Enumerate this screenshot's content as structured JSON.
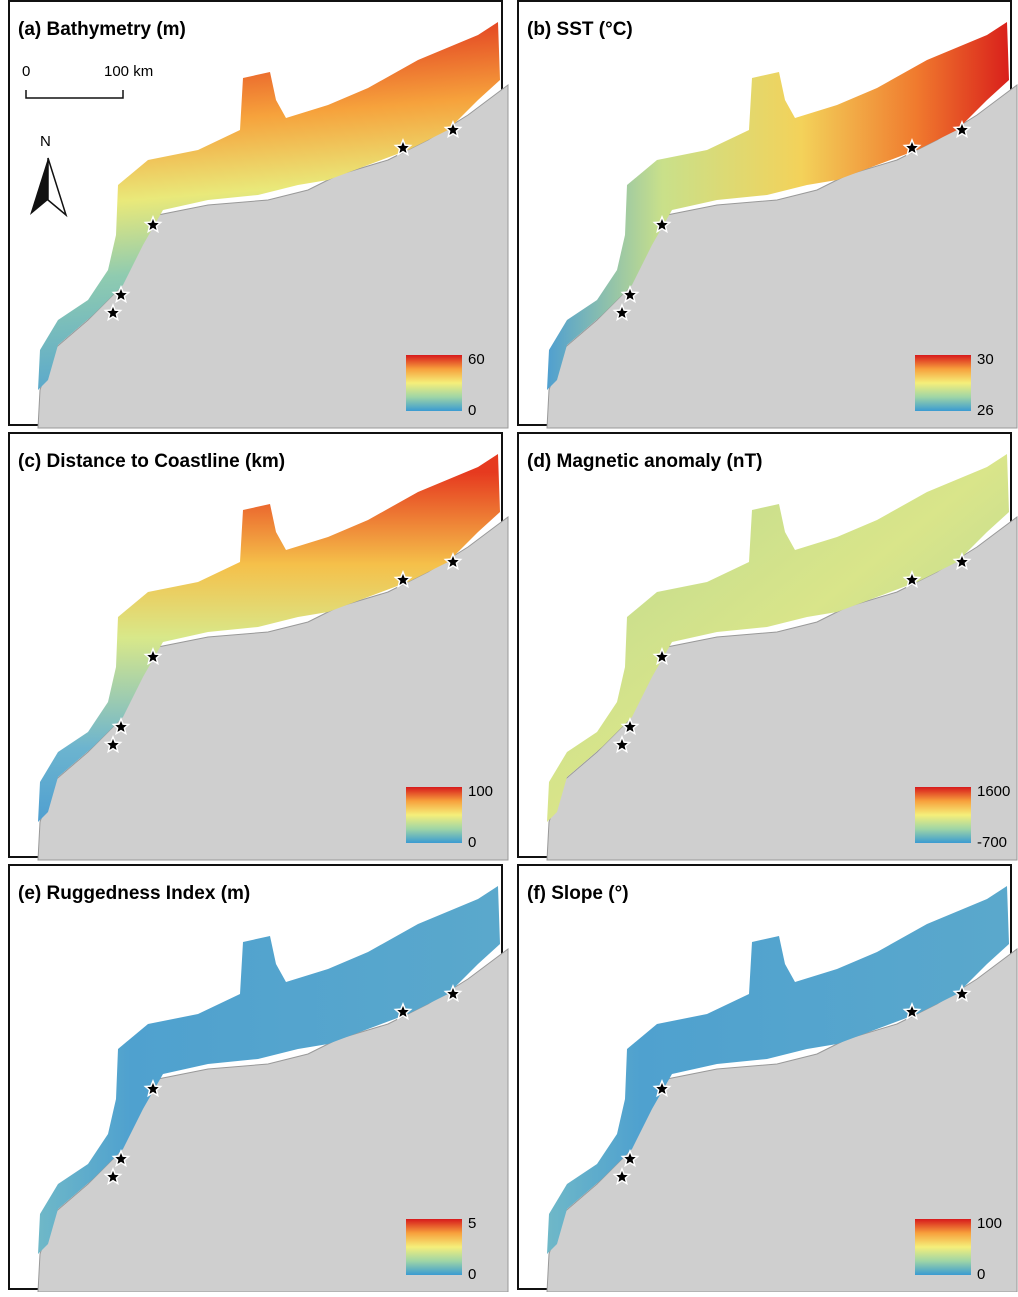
{
  "panels": [
    {
      "title": "(a) Bathymetry (m)",
      "legend_max": 60,
      "legend_min": 0
    },
    {
      "title": "(b) SST (°C)",
      "legend_max": 30,
      "legend_min": 26
    },
    {
      "title": "(c) Distance to Coastline (km)",
      "legend_max": 100,
      "legend_min": 0
    },
    {
      "title": "(d) Magnetic anomaly (nT)",
      "legend_max": 1600,
      "legend_min": -700
    },
    {
      "title": "(e) Ruggedness Index (m)",
      "legend_max": 5,
      "legend_min": 0
    },
    {
      "title": "(f) Slope (°)",
      "legend_max": 100,
      "legend_min": 0
    }
  ],
  "scale_bar": {
    "start": "0",
    "end": "100 km"
  },
  "north_arrow": "N"
}
